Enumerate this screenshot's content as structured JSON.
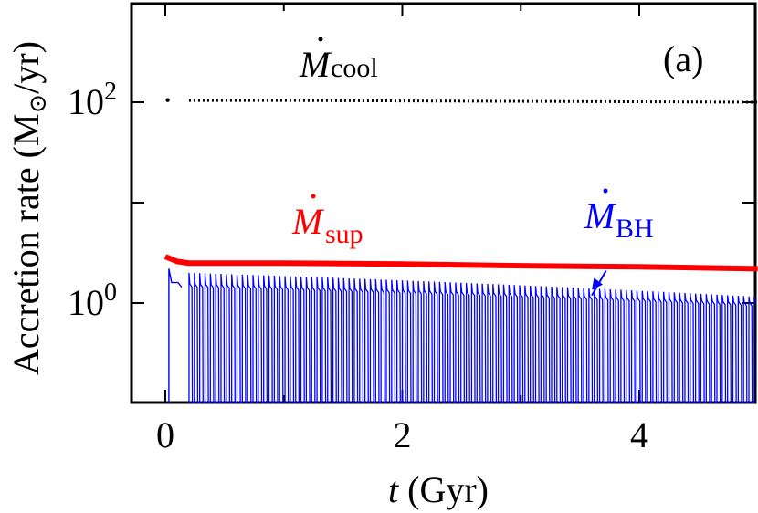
{
  "chart_data": {
    "type": "line",
    "panel_label": "(a)",
    "xlabel": {
      "var": "t",
      "rest": " (Gyr)"
    },
    "ylabel": {
      "pre": "Accretion rate (M",
      "sun": "⊙",
      "post": "/yr)"
    },
    "xlim": [
      -0.2,
      5.0
    ],
    "ylim": [
      0.1,
      1000
    ],
    "yscale": "log",
    "x_ticks": [
      0,
      2,
      4
    ],
    "y_ticks": [
      {
        "value": 1,
        "base": "10",
        "exp": "0"
      },
      {
        "value": 100,
        "base": "10",
        "exp": "2"
      }
    ],
    "series": [
      {
        "name": "cool",
        "label_main": "M",
        "label_sub": "cool",
        "color": "#000000",
        "style": "dotted",
        "points": [
          [
            0.02,
            105
          ],
          [
            0.2,
            104
          ],
          [
            1.0,
            104
          ],
          [
            2.0,
            103
          ],
          [
            3.0,
            102
          ],
          [
            4.0,
            101
          ],
          [
            5.0,
            100
          ]
        ]
      },
      {
        "name": "sup",
        "label_main": "M",
        "label_sub": "sup",
        "color": "#ff0000",
        "style": "solid-thick",
        "points": [
          [
            0.0,
            2.9
          ],
          [
            0.1,
            2.6
          ],
          [
            0.2,
            2.5
          ],
          [
            1.0,
            2.5
          ],
          [
            2.0,
            2.45
          ],
          [
            3.0,
            2.35
          ],
          [
            4.0,
            2.3
          ],
          [
            5.0,
            2.2
          ]
        ]
      },
      {
        "name": "BH",
        "label_main": "M",
        "label_sub": "BH",
        "color": "#0000ff",
        "style": "oscillating",
        "cycle_period": 0.045,
        "start": 0.2,
        "peak_start": 2.0,
        "peak_end": 1.15,
        "trough_start": 1.55,
        "trough_end": 1.0,
        "floor": 0.1,
        "initial_spike": {
          "x": 0.03,
          "peak": 2.2,
          "settle": 1.6
        }
      }
    ],
    "annotations": {
      "bh_arrow": {
        "from": [
          3.72,
          2.1
        ],
        "to": [
          3.6,
          1.35
        ]
      }
    },
    "grid": false,
    "legend": "inline labels"
  }
}
